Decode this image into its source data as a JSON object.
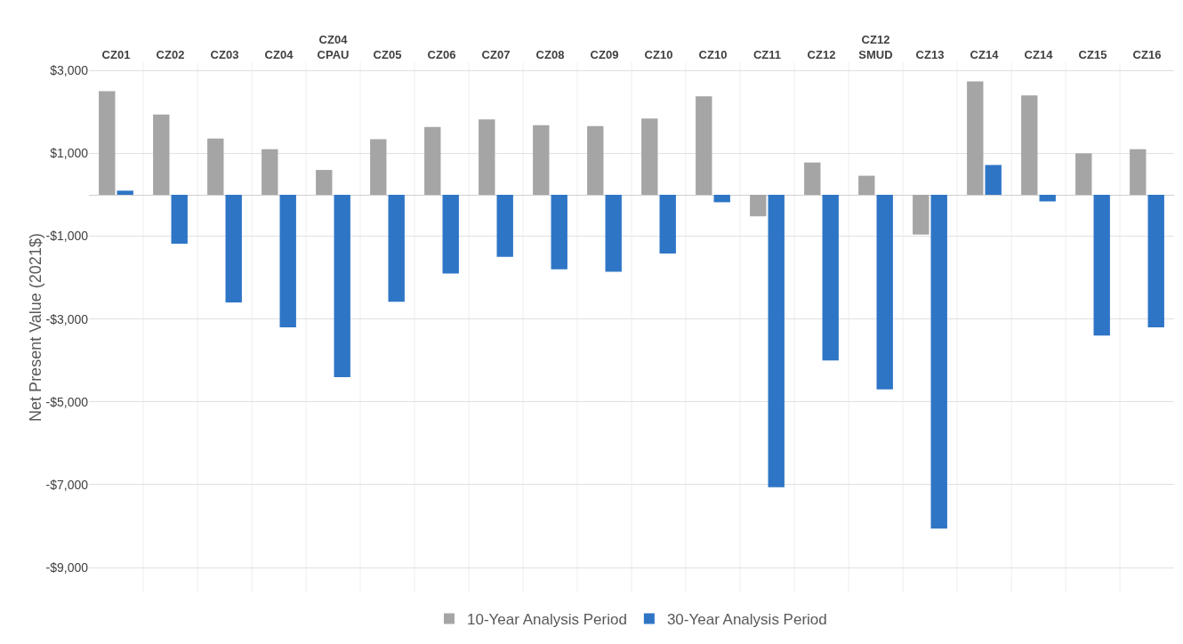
{
  "chart_data": {
    "type": "bar",
    "ylabel": "Net Present Value (2021$)",
    "categories": [
      "CZ01",
      "CZ02",
      "CZ03",
      "CZ04",
      "CZ04 CPAU",
      "CZ05",
      "CZ06",
      "CZ07",
      "CZ08",
      "CZ09",
      "CZ10",
      "CZ10",
      "CZ11",
      "CZ12",
      "CZ12 SMUD",
      "CZ13",
      "CZ14",
      "CZ14",
      "CZ15",
      "CZ16"
    ],
    "series": [
      {
        "name": "10-Year Analysis Period",
        "color": "#a5a5a5",
        "values": [
          2500,
          1940,
          1360,
          1100,
          600,
          1340,
          1640,
          1820,
          1680,
          1660,
          1840,
          2380,
          -520,
          780,
          460,
          -960,
          2740,
          2400,
          1000,
          1100
        ]
      },
      {
        "name": "30-Year Analysis Period",
        "color": "#2e75c6",
        "values": [
          100,
          -1180,
          -2600,
          -3200,
          -4400,
          -2580,
          -1900,
          -1500,
          -1800,
          -1860,
          -1420,
          -180,
          -7060,
          -4000,
          -4700,
          -8060,
          720,
          -160,
          -3400,
          -3200
        ]
      }
    ],
    "ylim": [
      -9600,
      3200
    ],
    "yticks": [
      {
        "value": 3000,
        "label": "$3,000"
      },
      {
        "value": 1000,
        "label": "$1,000"
      },
      {
        "value": -1000,
        "label": "-$1,000"
      },
      {
        "value": -3000,
        "label": "-$3,000"
      },
      {
        "value": -5000,
        "label": "-$5,000"
      },
      {
        "value": -7000,
        "label": "-$7,000"
      },
      {
        "value": -9000,
        "label": "-$9,000"
      }
    ],
    "grid": true,
    "legend": "bottom"
  }
}
